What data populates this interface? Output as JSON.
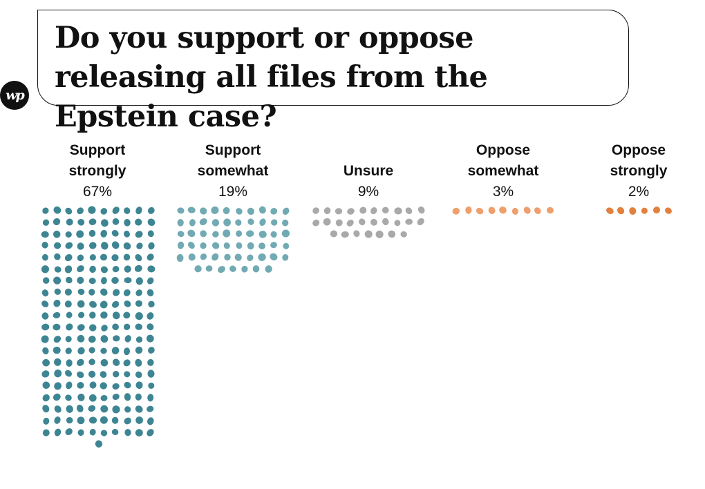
{
  "title": "Do you support or oppose releasing all files from the Epstein case?",
  "logo": {
    "text": "wp",
    "icon": "washington-post-logo-icon"
  },
  "chart_data": {
    "type": "dot-array",
    "title": "Do you support or oppose releasing all files from the Epstein case?",
    "categories": [
      "Support strongly",
      "Support somewhat",
      "Unsure",
      "Oppose somewhat",
      "Oppose strongly"
    ],
    "values": [
      67,
      19,
      9,
      3,
      2
    ],
    "value_labels": [
      "67%",
      "19%",
      "9%",
      "3%",
      "2%"
    ],
    "colors": [
      "#3e8593",
      "#72aab3",
      "#a9a9a9",
      "#ee9f6c",
      "#e2803e"
    ]
  },
  "columns": [
    {
      "name": "Support\nstrongly",
      "pct": "67%"
    },
    {
      "name": "Support\nsomewhat",
      "pct": "19%"
    },
    {
      "name": "Unsure",
      "pct": "9%"
    },
    {
      "name": "Oppose\nsomewhat",
      "pct": "3%"
    },
    {
      "name": "Oppose\nstrongly",
      "pct": "2%"
    }
  ]
}
